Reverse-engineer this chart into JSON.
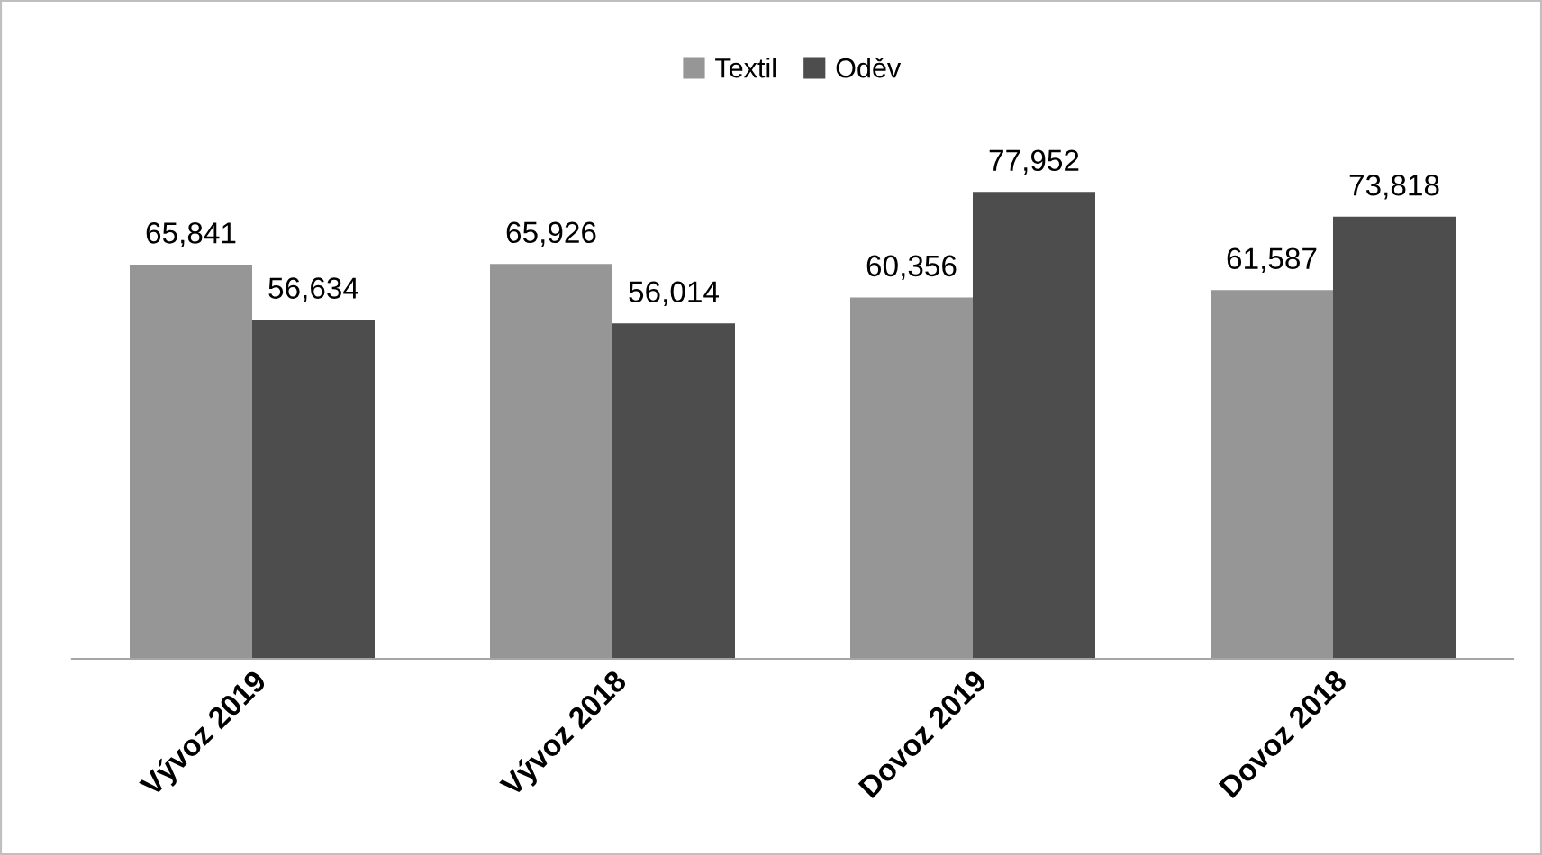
{
  "chart_data": {
    "type": "bar",
    "categories": [
      "Vývoz 2019",
      "Vývoz 2018",
      "Dovoz 2019",
      "Dovoz 2018"
    ],
    "series": [
      {
        "name": "Textil",
        "color": "#969696",
        "values": [
          65841,
          65926,
          60356,
          61587
        ],
        "value_labels": [
          "65,841",
          "65,926",
          "60,356",
          "61,587"
        ]
      },
      {
        "name": "Oděv",
        "color": "#4d4d4d",
        "values": [
          56634,
          56014,
          77952,
          73818
        ],
        "value_labels": [
          "56,634",
          "56,014",
          "77,952",
          "73,818"
        ]
      }
    ],
    "legend": "top",
    "grid": false,
    "tick_labels": "x"
  }
}
